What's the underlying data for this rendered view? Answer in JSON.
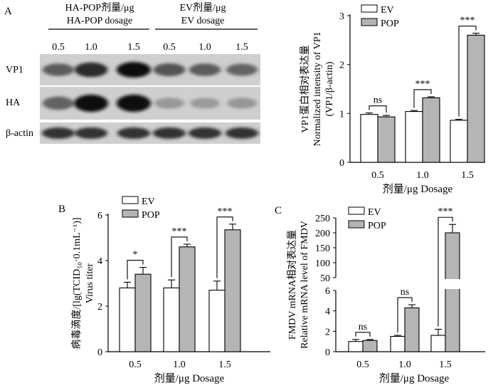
{
  "panels": {
    "a": "A",
    "b": "B",
    "c": "C"
  },
  "blot": {
    "header_left_cn": "HA-POP剂量/μg",
    "header_left_en": "HA-POP dosage",
    "header_right_cn": "EV剂量/μg",
    "header_right_en": "EV dosage",
    "lane_labels": [
      "0.5",
      "1.0",
      "1.5",
      "0.5",
      "1.0",
      "1.5"
    ],
    "rows": [
      {
        "label": "VP1",
        "intensity": [
          0.55,
          0.85,
          1.0,
          0.6,
          0.55,
          0.5
        ]
      },
      {
        "label": "HA",
        "intensity": [
          0.5,
          1.0,
          1.0,
          0.2,
          0.18,
          0.2
        ]
      },
      {
        "label": "β-actin",
        "intensity": [
          0.8,
          0.8,
          0.8,
          0.8,
          0.8,
          0.8
        ]
      }
    ]
  },
  "colors": {
    "ev": "#ffffff",
    "pop": "#b5b5b5"
  },
  "chart_data": [
    {
      "id": "vp1",
      "type": "bar",
      "categories": [
        "0.5",
        "1.0",
        "1.5"
      ],
      "series": [
        {
          "name": "EV",
          "values": [
            0.98,
            1.04,
            0.86
          ],
          "errors": [
            0.03,
            0.02,
            0.02
          ]
        },
        {
          "name": "POP",
          "values": [
            0.93,
            1.32,
            2.6
          ],
          "errors": [
            0.03,
            0.02,
            0.04
          ]
        }
      ],
      "significance": [
        "ns",
        "***",
        "***"
      ],
      "ylim": [
        0,
        3
      ],
      "yticks": [
        "0",
        "1",
        "2",
        "3"
      ],
      "xlabel": "剂量/μg Dosage",
      "ylabel_cn": "VP1蛋白相对表达量",
      "ylabel_en1": "Normalized intensity of VP1",
      "ylabel_en2": "(VP1/β-actin)",
      "legend": "top-left"
    },
    {
      "id": "titer",
      "type": "bar",
      "categories": [
        "0.5",
        "1.0",
        "1.5"
      ],
      "series": [
        {
          "name": "EV",
          "values": [
            2.8,
            2.8,
            2.7
          ],
          "errors": [
            0.25,
            0.35,
            0.4
          ]
        },
        {
          "name": "POP",
          "values": [
            3.4,
            4.6,
            5.35
          ],
          "errors": [
            0.3,
            0.12,
            0.25
          ]
        }
      ],
      "significance": [
        "*",
        "***",
        "***"
      ],
      "ylim": [
        0,
        6
      ],
      "yticks": [
        "0",
        "2",
        "4",
        "6"
      ],
      "xlabel": "剂量/μg Dosage",
      "ylabel_cn": "病毒滴度/[lg(TCID₅₀·0.1mL⁻¹)]",
      "ylabel_en": "Virus titer",
      "legend": "top-left"
    },
    {
      "id": "mrna",
      "type": "bar",
      "categories": [
        "0.5",
        "1.0",
        "1.5"
      ],
      "series": [
        {
          "name": "EV",
          "values": [
            1.0,
            1.5,
            1.6
          ],
          "errors": [
            0.2,
            0.1,
            0.6
          ]
        },
        {
          "name": "POP",
          "values": [
            1.1,
            4.3,
            200
          ],
          "errors": [
            0.1,
            0.3,
            28
          ]
        }
      ],
      "significance": [
        "ns",
        "ns",
        "***"
      ],
      "y_axis_break": {
        "lower": [
          0,
          6
        ],
        "upper": [
          50,
          250
        ]
      },
      "yticks_lower": [
        "0",
        "2",
        "4",
        "6"
      ],
      "yticks_upper": [
        "50",
        "100",
        "150",
        "200",
        "250"
      ],
      "xlabel": "剂量/μg Dosage",
      "ylabel_cn": "FMDV mRNA相对表达量",
      "ylabel_en": "Relative mRNA level of FMDV",
      "legend": "top-left"
    }
  ]
}
